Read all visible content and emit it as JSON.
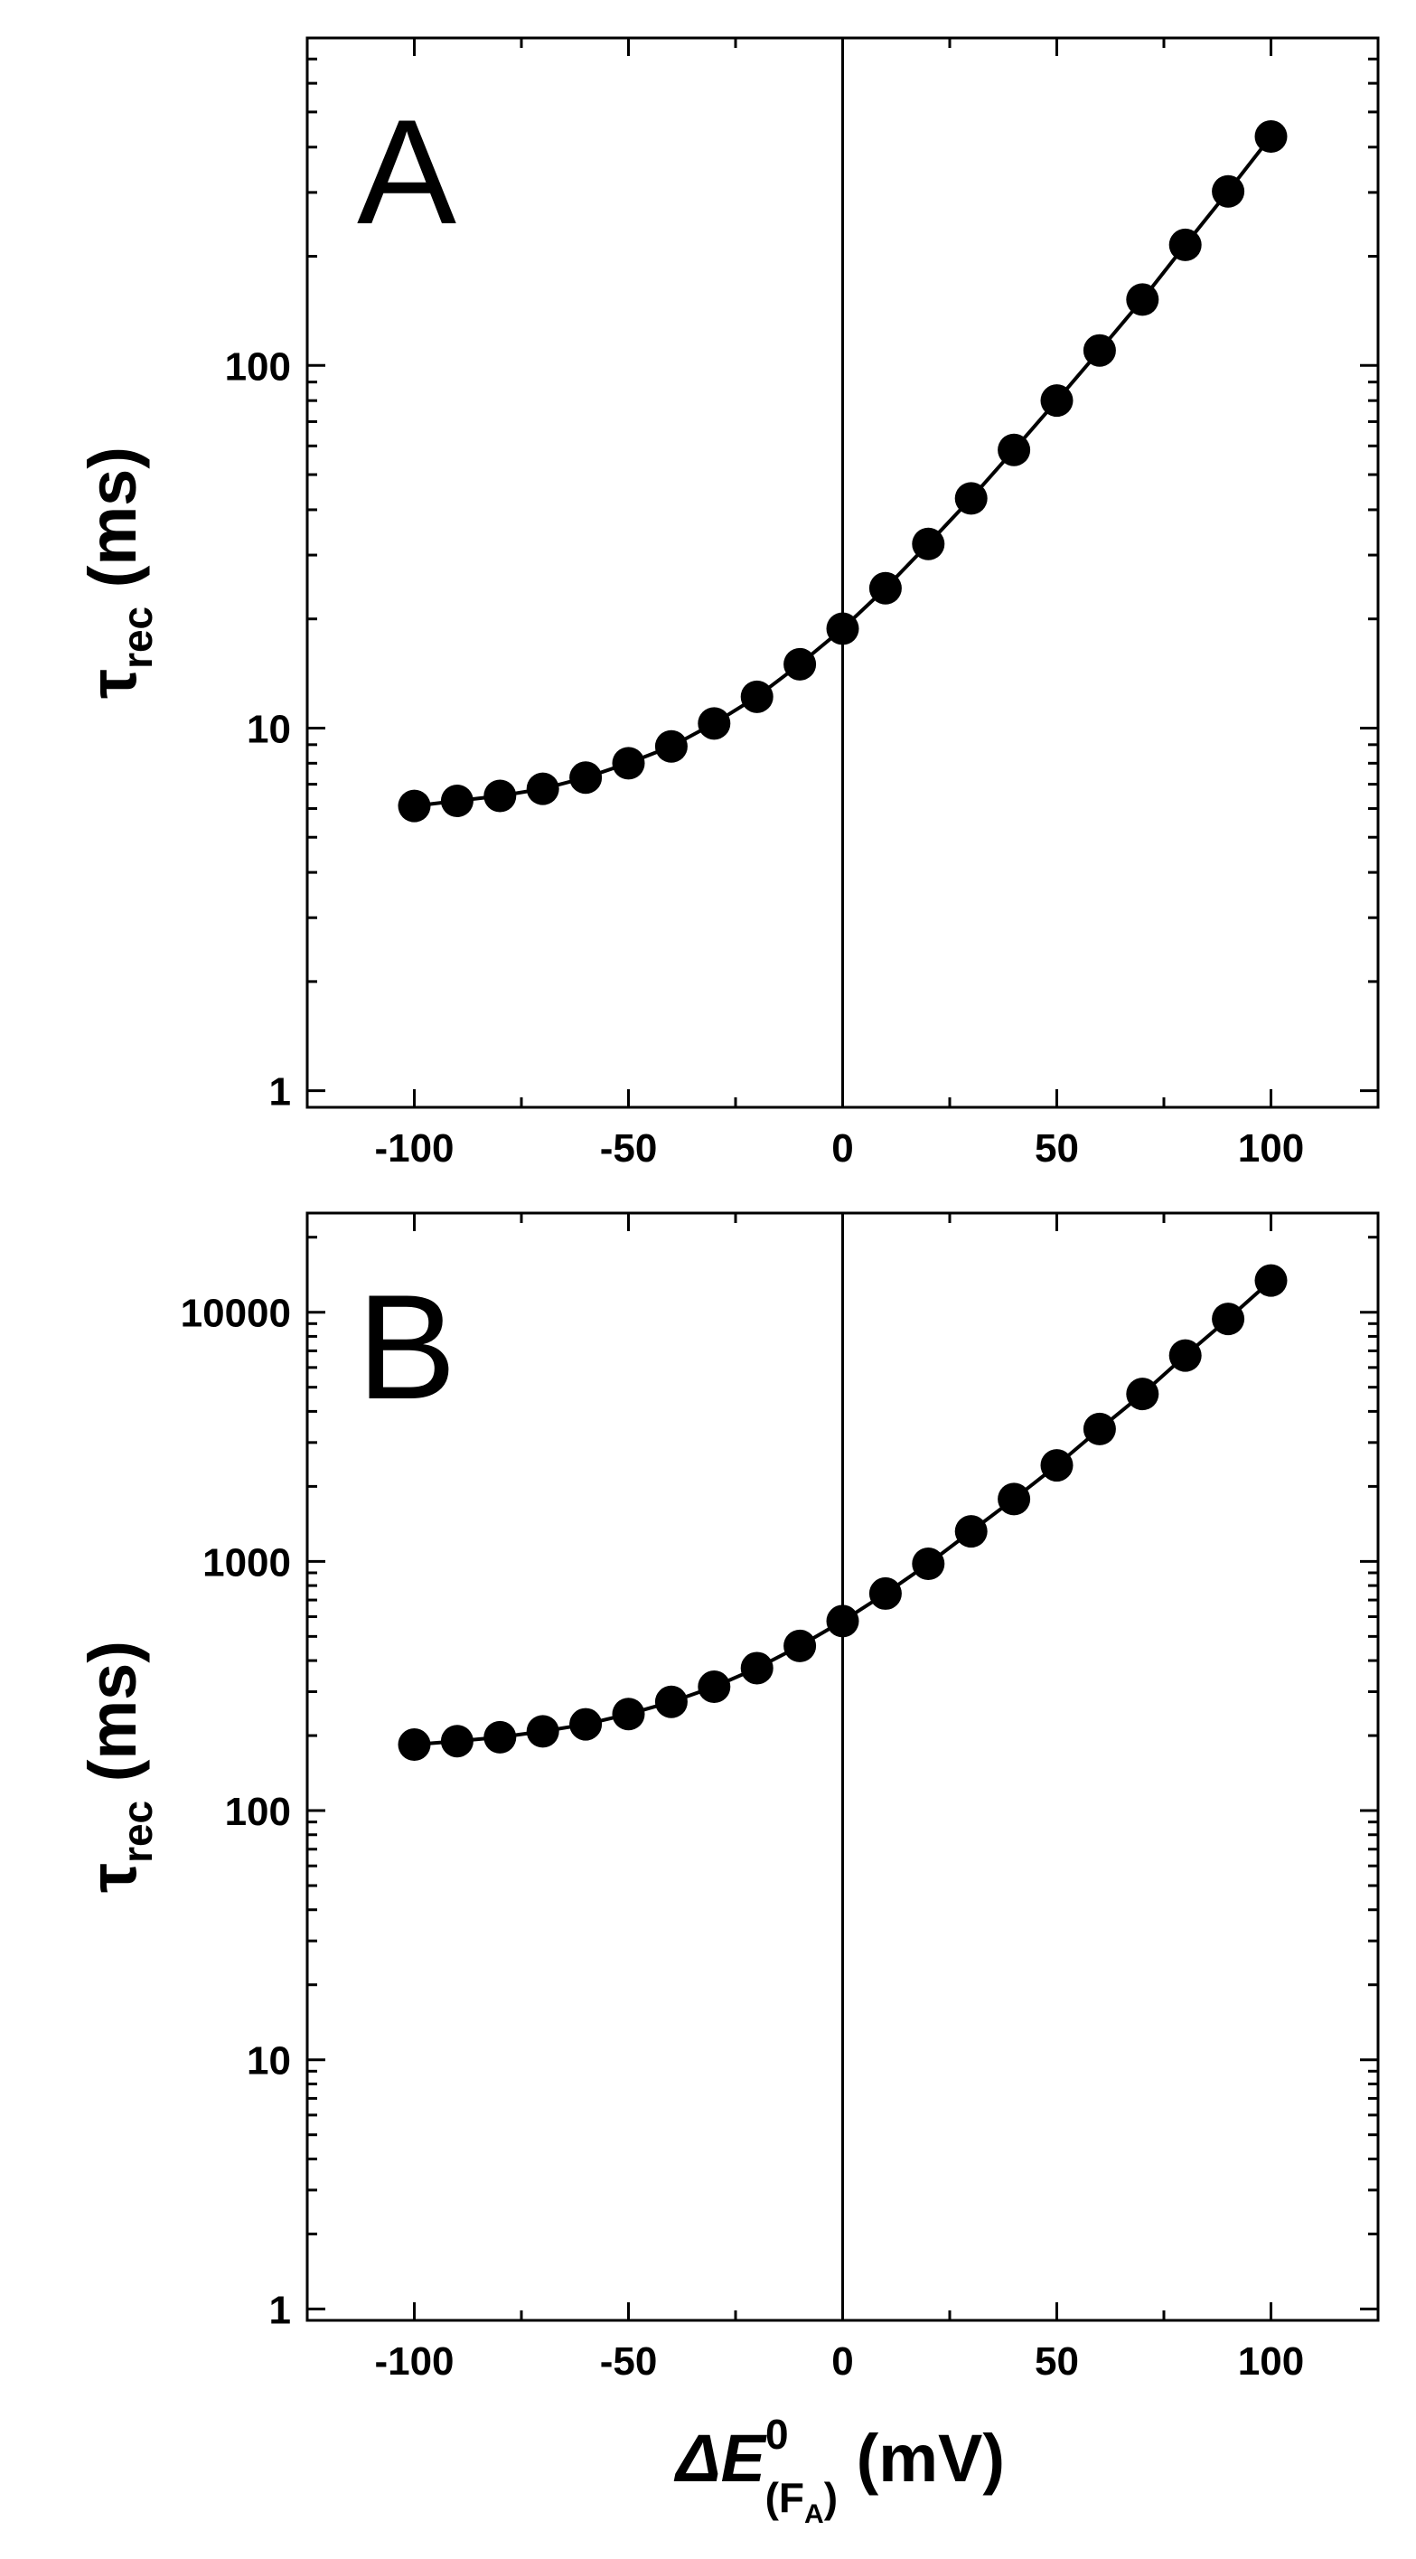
{
  "chart_data": [
    {
      "panel": "A",
      "type": "scatter",
      "panel_label": "A",
      "ylabel": {
        "main": "τ",
        "sub": "rec",
        "unit": "(ms)"
      },
      "xlabel": "",
      "yscale": "log",
      "xlim": [
        -125,
        125
      ],
      "ylim": [
        0.9,
        800
      ],
      "xticks": [
        -100,
        -50,
        0,
        50,
        100
      ],
      "xtick_labels": [
        "-100",
        "-50",
        "0",
        "50",
        "100"
      ],
      "yticks": [
        1,
        10,
        100
      ],
      "ytick_labels": [
        "1",
        "10",
        "100"
      ],
      "vertical_line_x": 0,
      "grid": false,
      "series": [
        {
          "x": [
            -100,
            -90,
            -80,
            -70,
            -60,
            -50,
            -40,
            -30,
            -20,
            -10,
            0,
            10,
            20,
            30,
            40,
            50,
            60,
            70,
            80,
            90,
            100
          ],
          "y": [
            6.1,
            6.3,
            6.5,
            6.8,
            7.3,
            8.0,
            8.9,
            10.3,
            12.2,
            15.0,
            18.8,
            24.3,
            32.2,
            43.0,
            58.5,
            80.0,
            110,
            152,
            215,
            302,
            428
          ]
        }
      ]
    },
    {
      "panel": "B",
      "type": "scatter",
      "panel_label": "B",
      "ylabel": {
        "main": "τ",
        "sub": "rec",
        "unit": "(ms)"
      },
      "xlabel": {
        "prefix": "ΔE",
        "sup": "0",
        "sub": "(F",
        "subsub": "A",
        "close": ")",
        "unit": "(mV)"
      },
      "yscale": "log",
      "xlim": [
        -125,
        125
      ],
      "ylim": [
        0.9,
        25000
      ],
      "xticks": [
        -100,
        -50,
        0,
        50,
        100
      ],
      "xtick_labels": [
        "-100",
        "-50",
        "0",
        "50",
        "100"
      ],
      "yticks": [
        1,
        10,
        100,
        1000,
        10000
      ],
      "ytick_labels": [
        "1",
        "10",
        "100",
        "1000",
        "10000"
      ],
      "vertical_line_x": 0,
      "grid": false,
      "series": [
        {
          "x": [
            -100,
            -90,
            -80,
            -70,
            -60,
            -50,
            -40,
            -30,
            -20,
            -10,
            0,
            10,
            20,
            30,
            40,
            50,
            60,
            70,
            80,
            90,
            100
          ],
          "y": [
            184,
            190,
            197,
            208,
            222,
            244,
            273,
            314,
            373,
            458,
            576,
            743,
            978,
            1320,
            1780,
            2430,
            3400,
            4700,
            6700,
            9400,
            13400
          ]
        }
      ]
    }
  ]
}
